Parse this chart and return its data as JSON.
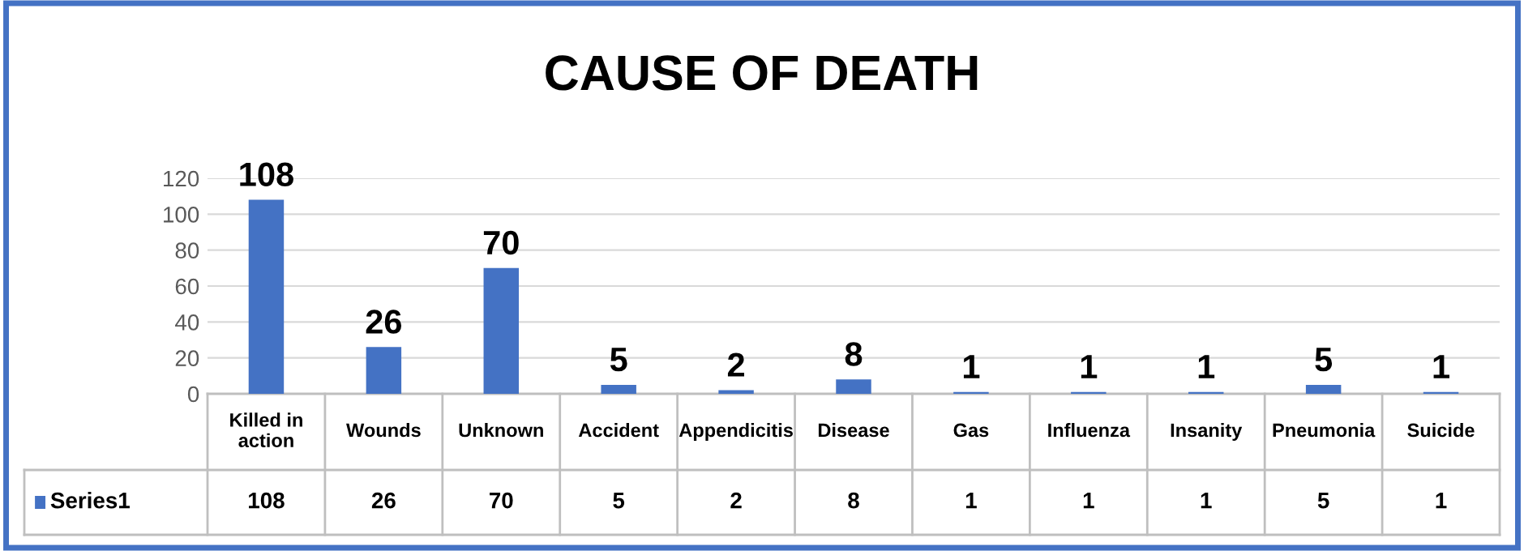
{
  "chart_data": {
    "type": "bar",
    "title": "CAUSE OF DEATH",
    "categories": [
      "Killed in action",
      "Wounds",
      "Unknown",
      "Accident",
      "Appendicitis",
      "Disease",
      "Gas",
      "Influenza",
      "Insanity",
      "Pneumonia",
      "Suicide"
    ],
    "series": [
      {
        "name": "Series1",
        "color": "#4472c4",
        "values": [
          108,
          26,
          70,
          5,
          2,
          8,
          1,
          1,
          1,
          5,
          1
        ],
        "value_labels": [
          "108",
          "26",
          "70",
          "5",
          "2",
          "8",
          "1",
          "1",
          "1",
          "5",
          "1"
        ]
      }
    ],
    "ylim": [
      0,
      120
    ],
    "yticks": [
      0,
      20,
      40,
      60,
      80,
      100,
      120
    ],
    "grid": "y",
    "annotations": [
      "108",
      "26",
      "70",
      "5",
      "2",
      "8",
      "1",
      "1",
      "1",
      "5",
      "1"
    ]
  }
}
